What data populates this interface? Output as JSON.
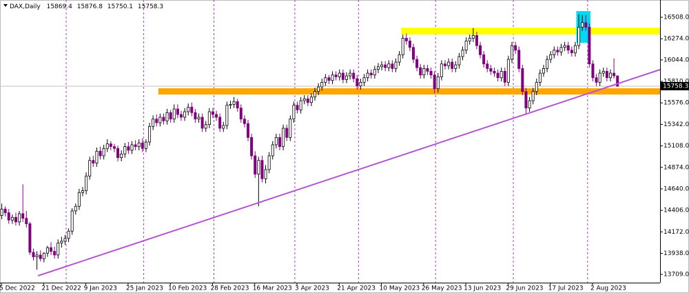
{
  "chart_data": {
    "type": "candlestick",
    "title": "DAX,Daily",
    "categories": [
      "5 Dec 2022",
      null,
      null,
      null,
      null,
      null,
      null,
      null,
      null,
      null,
      null,
      null,
      "21 Dec 2022",
      null,
      null,
      null,
      null,
      null,
      null,
      null,
      null,
      null,
      null,
      null,
      "9 Jan 2023",
      null,
      null,
      null,
      null,
      null,
      null,
      null,
      null,
      null,
      null,
      null,
      "25 Jan 2023",
      null,
      null,
      null,
      null,
      null,
      null,
      null,
      null,
      null,
      null,
      null,
      "10 Feb 2023",
      null,
      null,
      null,
      null,
      null,
      null,
      null,
      null,
      null,
      null,
      null,
      "28 Feb 2023",
      null,
      null,
      null,
      null,
      null,
      null,
      null,
      null,
      null,
      null,
      null,
      "16 Mar 2023",
      null,
      null,
      null,
      null,
      null,
      null,
      null,
      null,
      null,
      null,
      null,
      "3 Apr 2023",
      null,
      null,
      null,
      null,
      null,
      null,
      null,
      null,
      null,
      null,
      null,
      "21 Apr 2023",
      null,
      null,
      null,
      null,
      null,
      null,
      null,
      null,
      null,
      null,
      null,
      "10 May 2023",
      null,
      null,
      null,
      null,
      null,
      null,
      null,
      null,
      null,
      null,
      null,
      "26 May 2023",
      null,
      null,
      null,
      null,
      null,
      null,
      null,
      null,
      null,
      null,
      null,
      "13 Jun 2023",
      null,
      null,
      null,
      null,
      null,
      null,
      null,
      null,
      null,
      null,
      null,
      "29 Jun 2023",
      null,
      null,
      null,
      null,
      null,
      null,
      null,
      null,
      null,
      null,
      null,
      "17 Jul 2023",
      null,
      null,
      null,
      null,
      null,
      null,
      null,
      null,
      null,
      null,
      null,
      "2 Aug 2023",
      null,
      null,
      null,
      null,
      null,
      null,
      null
    ],
    "open": [
      14350,
      14420,
      14380,
      14300,
      14330,
      14280,
      14370,
      14320,
      14260,
      13950,
      13900,
      13920,
      13880,
      13940,
      14000,
      13960,
      13920,
      14050,
      14070,
      14100,
      14180,
      14400,
      14450,
      14600,
      14620,
      14780,
      14950,
      14920,
      15050,
      15000,
      15080,
      15130,
      15100,
      15080,
      14980,
      15020,
      15100,
      15060,
      15120,
      15100,
      15140,
      15080,
      15150,
      15320,
      15400,
      15360,
      15420,
      15380,
      15470,
      15400,
      15510,
      15450,
      15420,
      15480,
      15530,
      15470,
      15400,
      15420,
      15300,
      15340,
      15480,
      15450,
      15420,
      15300,
      15330,
      15550,
      15560,
      15590,
      15520,
      15400,
      15350,
      15200,
      15000,
      14800,
      14950,
      14750,
      14850,
      15000,
      15120,
      15200,
      15100,
      15300,
      15200,
      15400,
      15550,
      15500,
      15600,
      15620,
      15580,
      15640,
      15700,
      15750,
      15800,
      15850,
      15820,
      15880,
      15860,
      15900,
      15830,
      15870,
      15900,
      15840,
      15760,
      15800,
      15850,
      15900,
      15880,
      15940,
      15970,
      15990,
      15960,
      16000,
      15950,
      16020,
      16100,
      16280,
      16250,
      16180,
      16050,
      15960,
      15880,
      15950,
      15920,
      15880,
      15730,
      15860,
      16000,
      15980,
      16020,
      15950,
      15990,
      16080,
      16150,
      16250,
      16280,
      16310,
      16200,
      16100,
      16000,
      15950,
      15920,
      15900,
      15850,
      15920,
      15800,
      16050,
      16200,
      16150,
      15950,
      15700,
      15520,
      15600,
      15700,
      15800,
      15900,
      15950,
      16050,
      16100,
      16150,
      16130,
      16180,
      16200,
      16150,
      16120,
      16200,
      16400,
      16450,
      16400,
      16000,
      15850,
      15800,
      15900,
      15920,
      15850,
      15900,
      15869.4
    ],
    "high": [
      14480,
      14450,
      14420,
      14360,
      14380,
      14400,
      14690,
      14400,
      14280,
      13990,
      13960,
      13970,
      13950,
      14020,
      14060,
      14010,
      14090,
      14120,
      14140,
      14210,
      14430,
      14480,
      14640,
      14660,
      14820,
      14990,
      15000,
      15090,
      15100,
      15120,
      15180,
      15160,
      15130,
      15110,
      15060,
      15140,
      15150,
      15160,
      15170,
      15180,
      15190,
      15180,
      15360,
      15440,
      15450,
      15460,
      15460,
      15510,
      15500,
      15560,
      15560,
      15490,
      15520,
      15570,
      15580,
      15510,
      15460,
      15460,
      15380,
      15520,
      15520,
      15490,
      15460,
      15370,
      15590,
      15600,
      15640,
      15620,
      15560,
      15440,
      15390,
      15240,
      15050,
      14990,
      15000,
      14900,
      15040,
      15160,
      15240,
      15240,
      15340,
      15340,
      15440,
      15590,
      15590,
      15640,
      15660,
      15660,
      15680,
      15740,
      15790,
      15840,
      15890,
      15880,
      15920,
      15920,
      15940,
      15940,
      15910,
      15940,
      15940,
      15880,
      15840,
      15890,
      15940,
      15940,
      15980,
      16010,
      16030,
      16030,
      16040,
      16040,
      16060,
      16140,
      16320,
      16330,
      16290,
      16220,
      16090,
      16000,
      15990,
      15990,
      15960,
      15920,
      15900,
      16040,
      16040,
      16060,
      16060,
      16030,
      16120,
      16190,
      16290,
      16320,
      16390,
      16350,
      16240,
      16140,
      16040,
      15990,
      15960,
      15940,
      15960,
      15960,
      16090,
      16240,
      16240,
      16190,
      15990,
      15740,
      15640,
      15740,
      15840,
      15940,
      15990,
      16090,
      16140,
      16190,
      16190,
      16220,
      16240,
      16240,
      16190,
      16240,
      16540,
      16530,
      16530,
      16440,
      16040,
      15890,
      15940,
      15960,
      15960,
      15940,
      16060,
      15876.8
    ],
    "low": [
      14310,
      14340,
      14260,
      14260,
      14240,
      14240,
      14280,
      14220,
      13920,
      13860,
      13760,
      13850,
      13840,
      13900,
      13920,
      13880,
      13880,
      14000,
      14030,
      14060,
      14140,
      14360,
      14410,
      14560,
      14580,
      14740,
      14880,
      14880,
      14960,
      14960,
      15040,
      15060,
      15040,
      14940,
      14940,
      14980,
      15020,
      15020,
      15060,
      15060,
      15040,
      15040,
      15110,
      15280,
      15320,
      15320,
      15340,
      15340,
      15360,
      15360,
      15410,
      15380,
      15380,
      15440,
      15430,
      15360,
      15360,
      15260,
      15260,
      15300,
      15410,
      15380,
      15260,
      15260,
      15290,
      15510,
      15520,
      15480,
      15360,
      15310,
      15160,
      14960,
      14760,
      14450,
      14710,
      14700,
      14810,
      14960,
      15080,
      15060,
      15060,
      15160,
      15160,
      15360,
      15460,
      15460,
      15560,
      15540,
      15540,
      15600,
      15660,
      15710,
      15760,
      15780,
      15780,
      15820,
      15820,
      15790,
      15790,
      15830,
      15800,
      15720,
      15720,
      15760,
      15810,
      15840,
      15840,
      15900,
      15930,
      15920,
      15920,
      15910,
      15910,
      15980,
      16060,
      16210,
      16140,
      16010,
      15920,
      15840,
      15840,
      15880,
      15840,
      15680,
      15690,
      15820,
      15940,
      15940,
      15910,
      15910,
      15950,
      16040,
      16110,
      16210,
      16240,
      16160,
      16060,
      15960,
      15910,
      15880,
      15860,
      15810,
      15810,
      15760,
      15760,
      16010,
      16110,
      15910,
      15660,
      15460,
      15480,
      15560,
      15660,
      15760,
      15860,
      15910,
      16010,
      16060,
      16090,
      16090,
      16140,
      16110,
      16080,
      16080,
      16160,
      16360,
      16360,
      15960,
      15810,
      15760,
      15760,
      15860,
      15810,
      15810,
      15840,
      15750.1
    ],
    "close": [
      14420,
      14380,
      14300,
      14330,
      14280,
      14370,
      14320,
      14260,
      13950,
      13900,
      13920,
      13880,
      13940,
      14000,
      13960,
      13920,
      14050,
      14070,
      14100,
      14180,
      14400,
      14450,
      14600,
      14620,
      14780,
      14950,
      14920,
      15050,
      15000,
      15080,
      15130,
      15100,
      15080,
      14980,
      15020,
      15100,
      15060,
      15120,
      15100,
      15140,
      15080,
      15150,
      15320,
      15400,
      15360,
      15420,
      15380,
      15470,
      15400,
      15510,
      15450,
      15420,
      15480,
      15530,
      15470,
      15400,
      15420,
      15300,
      15340,
      15480,
      15450,
      15420,
      15300,
      15330,
      15550,
      15560,
      15590,
      15520,
      15400,
      15350,
      15200,
      15000,
      14800,
      14950,
      14750,
      14850,
      15000,
      15120,
      15200,
      15100,
      15300,
      15200,
      15400,
      15550,
      15500,
      15600,
      15620,
      15580,
      15640,
      15700,
      15750,
      15800,
      15850,
      15820,
      15880,
      15860,
      15900,
      15830,
      15870,
      15900,
      15840,
      15760,
      15800,
      15850,
      15900,
      15880,
      15940,
      15970,
      15990,
      15960,
      16000,
      15950,
      16020,
      16100,
      16280,
      16250,
      16180,
      16050,
      15960,
      15880,
      15950,
      15920,
      15880,
      15730,
      15860,
      16000,
      15980,
      16020,
      15950,
      15990,
      16080,
      16150,
      16250,
      16280,
      16310,
      16200,
      16100,
      16000,
      15950,
      15920,
      15900,
      15850,
      15920,
      15800,
      16050,
      16200,
      16150,
      15950,
      15700,
      15520,
      15600,
      15700,
      15800,
      15900,
      15950,
      16050,
      16100,
      16150,
      16130,
      16180,
      16200,
      16150,
      16120,
      16200,
      16400,
      16450,
      16400,
      16000,
      15850,
      15800,
      15900,
      15920,
      15850,
      15900,
      15870,
      15758.3
    ],
    "up_color": "#ffffff",
    "down_color": "#800080",
    "outline_color": "#000000",
    "ylim": [
      13619,
      16696
    ],
    "yticks": [
      {
        "value": 16508,
        "label": "16508.0"
      },
      {
        "value": 16274,
        "label": "16274.0"
      },
      {
        "value": 16044,
        "label": "16044.0"
      },
      {
        "value": 15810,
        "label": "15810.0"
      },
      {
        "value": 15576,
        "label": "15576.0"
      },
      {
        "value": 15342,
        "label": "15342.0"
      },
      {
        "value": 15108,
        "label": "15108.0"
      },
      {
        "value": 14874,
        "label": "14874.0"
      },
      {
        "value": 14640,
        "label": "14640.0"
      },
      {
        "value": 14406,
        "label": "14406.0"
      },
      {
        "value": 14172,
        "label": "14172.0"
      },
      {
        "value": 13938,
        "label": "13938.0"
      },
      {
        "value": 13709,
        "label": "13709.0"
      }
    ],
    "xlim": [
      -0.4,
      187.2
    ],
    "separators": [
      18.4,
      40.4,
      60.4,
      83.4,
      101.5,
      123.4,
      145.5,
      166.6
    ],
    "bands": [
      {
        "color": "#ffff00",
        "x": [
          113.6,
          187.2
        ],
        "y": [
          16320,
          16395
        ]
      },
      {
        "color": "#ffa500",
        "x": [
          44.6,
          187.2
        ],
        "y": [
          15667,
          15735
        ]
      }
    ],
    "highlight": {
      "color": "#00d8f0",
      "x": [
        163.4,
        167.4
      ],
      "y": [
        16230,
        16575
      ]
    },
    "trendline": {
      "color": "#b455d6",
      "x": [
        10.4,
        187.2
      ],
      "y": [
        13694,
        15938
      ]
    }
  }
}
